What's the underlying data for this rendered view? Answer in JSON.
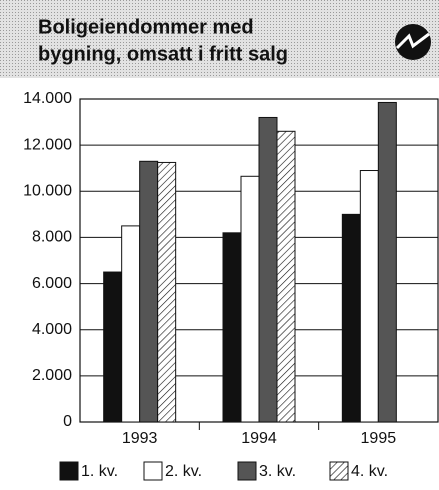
{
  "chart_data": {
    "type": "bar",
    "title": [
      "Boligeiendommer med",
      "bygning, omsatt i fritt salg"
    ],
    "categories": [
      "1993",
      "1994",
      "1995"
    ],
    "series": [
      {
        "name": "1. kv.",
        "color": "#111111",
        "values": [
          6500,
          8200,
          9000
        ]
      },
      {
        "name": "2. kv.",
        "color": "#ffffff",
        "values": [
          8500,
          10650,
          10900
        ]
      },
      {
        "name": "3. kv.",
        "color": "#555555",
        "values": [
          11300,
          13200,
          13850
        ]
      },
      {
        "name": "4. kv.",
        "color": "#ffffff",
        "pattern": "hatch",
        "values": [
          11250,
          12600,
          null
        ]
      }
    ],
    "ylim": [
      0,
      14000
    ],
    "yticks": [
      0,
      {
        "value": 2000,
        "label": "2.000"
      },
      {
        "value": 4000,
        "label": "4.000"
      },
      {
        "value": 6000,
        "label": "6.000"
      },
      {
        "value": 8000,
        "label": "8.000"
      },
      {
        "value": 10000,
        "label": "10.000"
      },
      {
        "value": 12000,
        "label": "12.000"
      },
      {
        "value": 14000,
        "label": "14.000"
      }
    ],
    "grid": true,
    "legend": "bottom"
  }
}
